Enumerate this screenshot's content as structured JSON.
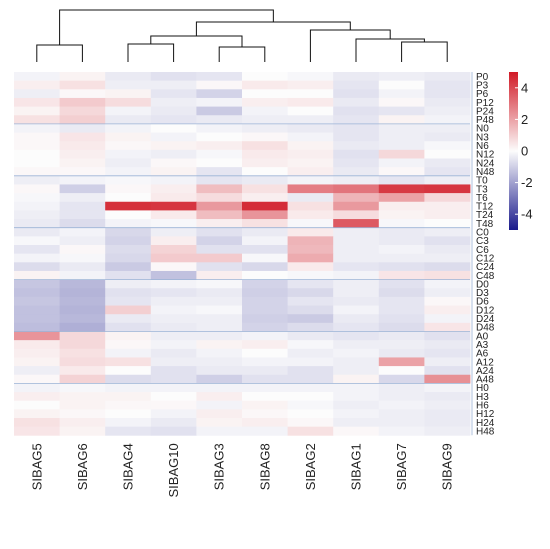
{
  "chart_data": {
    "type": "heatmap",
    "columns": [
      "SIBAG5",
      "SIBAG6",
      "SIBAG4",
      "SIBAG10",
      "SIBAG3",
      "SIBAG8",
      "SIBAG2",
      "SIBAG1",
      "SIBAG7",
      "SIBAG9"
    ],
    "rows": [
      "P0",
      "P3",
      "P6",
      "P12",
      "P24",
      "P48",
      "N0",
      "N3",
      "N6",
      "N12",
      "N24",
      "N48",
      "T0",
      "T3",
      "T6",
      "T12",
      "T24",
      "T48",
      "C0",
      "C3",
      "C6",
      "C12",
      "C24",
      "C48",
      "D0",
      "D3",
      "D6",
      "D12",
      "D24",
      "D48",
      "A0",
      "A3",
      "A6",
      "A12",
      "A24",
      "A48",
      "H0",
      "H3",
      "H6",
      "H12",
      "H24",
      "H48"
    ],
    "groups": [
      6,
      6,
      6,
      6,
      6,
      6,
      6
    ],
    "values": [
      [
        -0.2,
        0.2,
        -0.4,
        -0.6,
        -0.5,
        0.0,
        -0.1,
        -0.4,
        -0.3,
        -0.4
      ],
      [
        0.3,
        0.6,
        -0.3,
        -0.3,
        0.1,
        0.4,
        0.3,
        -0.5,
        0.0,
        -0.5
      ],
      [
        -0.3,
        0.1,
        0.2,
        -0.5,
        -0.9,
        0.0,
        0.0,
        -0.6,
        -0.2,
        -0.5
      ],
      [
        0.5,
        1.1,
        0.7,
        -0.3,
        -0.2,
        0.3,
        0.4,
        -0.4,
        0.1,
        -0.4
      ],
      [
        0.2,
        0.8,
        -0.2,
        -0.4,
        -1.1,
        -0.2,
        0.0,
        -0.6,
        -0.5,
        -0.3
      ],
      [
        0.6,
        1.0,
        -0.4,
        -0.5,
        -0.4,
        -0.3,
        -0.3,
        -0.5,
        0.2,
        -0.2
      ],
      [
        -0.2,
        -0.4,
        -0.2,
        0.0,
        -0.2,
        -0.3,
        -0.4,
        -0.5,
        -0.3,
        -0.3
      ],
      [
        0.1,
        0.5,
        0.2,
        -0.2,
        0.0,
        0.1,
        -0.2,
        -0.5,
        -0.3,
        -0.4
      ],
      [
        0.1,
        0.4,
        0.1,
        0.2,
        0.3,
        0.6,
        0.2,
        -0.4,
        -0.3,
        -0.1
      ],
      [
        0.0,
        0.3,
        -0.2,
        -0.3,
        -0.1,
        0.4,
        0.3,
        -0.6,
        0.8,
        0.0
      ],
      [
        0.0,
        0.2,
        -0.3,
        0.1,
        0.0,
        0.3,
        0.2,
        -0.5,
        -0.2,
        -0.4
      ],
      [
        0.1,
        0.1,
        -0.2,
        0.2,
        -0.5,
        0.0,
        0.3,
        -0.4,
        0.1,
        -0.5
      ],
      [
        -0.3,
        -0.2,
        -0.1,
        -0.2,
        -0.5,
        -0.4,
        -0.2,
        -0.3,
        -0.5,
        -0.3
      ],
      [
        0.1,
        -1.0,
        0.1,
        0.3,
        1.4,
        0.6,
        2.8,
        3.0,
        4.3,
        4.4
      ],
      [
        -0.1,
        -0.3,
        0.0,
        0.4,
        0.7,
        0.3,
        -0.4,
        1.6,
        2.0,
        0.8
      ],
      [
        -0.2,
        -0.5,
        4.5,
        4.4,
        2.2,
        4.6,
        0.6,
        2.2,
        0.3,
        0.3
      ],
      [
        -0.3,
        -0.5,
        0.0,
        0.4,
        1.4,
        2.3,
        0.4,
        0.7,
        0.2,
        0.3
      ],
      [
        -0.4,
        -0.7,
        -0.2,
        -0.1,
        0.3,
        0.6,
        -0.1,
        3.6,
        -0.1,
        0.0
      ],
      [
        -0.4,
        -0.2,
        -0.8,
        -0.3,
        -0.6,
        -0.4,
        0.4,
        -0.3,
        -0.4,
        -0.3
      ],
      [
        -0.1,
        -0.3,
        -0.9,
        0.3,
        -0.9,
        -0.2,
        1.6,
        -0.3,
        -0.4,
        -0.6
      ],
      [
        -0.5,
        0.1,
        -0.7,
        0.9,
        -0.6,
        -0.6,
        1.5,
        -0.3,
        -0.2,
        -0.4
      ],
      [
        -0.2,
        -0.1,
        -0.8,
        1.1,
        1.1,
        -0.1,
        1.8,
        -0.3,
        -0.3,
        -0.3
      ],
      [
        -0.7,
        -0.4,
        -1.1,
        0.1,
        -0.6,
        -0.8,
        0.4,
        -0.5,
        -0.6,
        -0.7
      ],
      [
        0.2,
        -0.2,
        -0.6,
        -1.3,
        0.3,
        0.0,
        -0.1,
        -0.2,
        0.5,
        0.6
      ],
      [
        -1.2,
        -1.5,
        -0.3,
        -0.2,
        -0.1,
        -0.9,
        -0.5,
        -0.3,
        -0.6,
        -0.2
      ],
      [
        -1.3,
        -1.6,
        -0.6,
        -0.5,
        -0.4,
        -1.0,
        -0.8,
        -0.3,
        -0.7,
        -0.3
      ],
      [
        -1.2,
        -1.5,
        -0.5,
        -0.3,
        -0.3,
        -0.9,
        -0.5,
        -0.4,
        -0.5,
        0.1
      ],
      [
        -1.3,
        -1.6,
        1.0,
        -0.2,
        -0.1,
        -0.9,
        -0.7,
        -0.2,
        -0.5,
        0.3
      ],
      [
        -1.3,
        -1.5,
        -0.4,
        -0.3,
        -0.3,
        -1.0,
        -1.1,
        -0.4,
        -0.6,
        -0.2
      ],
      [
        -1.4,
        -1.7,
        -0.6,
        -0.4,
        -0.3,
        -0.9,
        -0.7,
        -0.5,
        -0.7,
        0.5
      ],
      [
        2.3,
        0.8,
        0.2,
        -0.3,
        -0.3,
        -0.2,
        -0.4,
        -0.5,
        -0.4,
        -0.6
      ],
      [
        0.4,
        0.8,
        0.1,
        -0.2,
        0.2,
        0.3,
        -0.1,
        -0.3,
        -0.3,
        -0.4
      ],
      [
        0.3,
        0.6,
        -0.2,
        -0.4,
        -0.2,
        0.0,
        -0.3,
        -0.2,
        -0.4,
        -0.5
      ],
      [
        0.2,
        0.7,
        0.6,
        -0.3,
        -0.3,
        -0.2,
        -0.2,
        -0.3,
        2.0,
        -0.3
      ],
      [
        -0.3,
        0.4,
        0.0,
        -0.6,
        -0.4,
        -0.4,
        -0.6,
        -0.3,
        0.0,
        -0.6
      ],
      [
        0.1,
        0.9,
        -0.7,
        -0.6,
        -1.0,
        -0.6,
        -0.6,
        0.2,
        -0.8,
        2.4
      ],
      [
        -0.2,
        -0.1,
        -0.2,
        -0.2,
        -0.2,
        -0.2,
        -0.2,
        -0.2,
        -0.3,
        -0.2
      ],
      [
        0.3,
        0.2,
        0.2,
        0.0,
        0.3,
        0.0,
        0.0,
        -0.2,
        -0.3,
        -0.4
      ],
      [
        0.0,
        0.2,
        0.1,
        0.1,
        -0.2,
        0.2,
        -0.1,
        -0.3,
        -0.2,
        -0.3
      ],
      [
        0.2,
        0.1,
        0.0,
        -0.2,
        0.3,
        0.1,
        0.0,
        -0.2,
        -0.3,
        -0.4
      ],
      [
        0.6,
        0.3,
        -0.2,
        -0.4,
        0.2,
        0.3,
        0.1,
        -0.3,
        -0.3,
        -0.4
      ],
      [
        0.5,
        0.2,
        -0.5,
        -0.6,
        -0.2,
        -0.2,
        0.6,
        0.1,
        -0.2,
        -0.3
      ]
    ],
    "color_scale": {
      "min": -5,
      "mid": 0,
      "max": 5,
      "low_color": "#1a1a8c",
      "mid_color": "#fcfcfc",
      "high_color": "#d11a26"
    },
    "legend_ticks": [
      4,
      2,
      0,
      -2,
      -4
    ],
    "dendrogram": "columns"
  }
}
